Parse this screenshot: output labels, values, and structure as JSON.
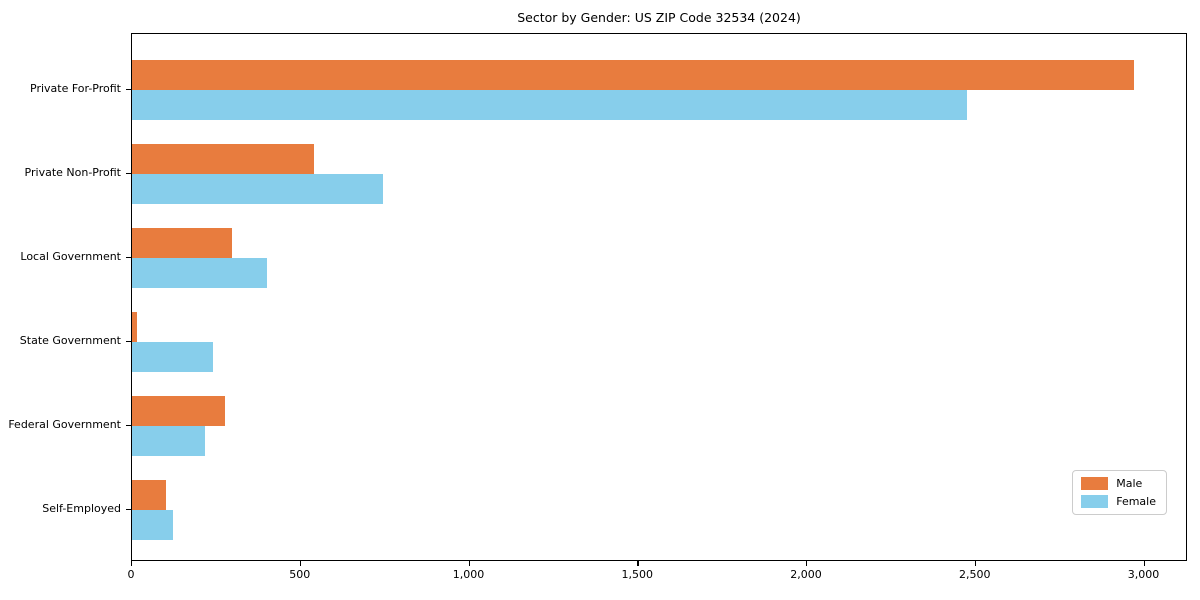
{
  "chart_data": {
    "type": "bar",
    "orientation": "horizontal",
    "title": "Sector by Gender: US ZIP Code 32534 (2024)",
    "categories": [
      "Private For-Profit",
      "Private Non-Profit",
      "Local Government",
      "State Government",
      "Federal Government",
      "Self-Employed"
    ],
    "series": [
      {
        "name": "Male",
        "color": "#e87c3e",
        "values": [
          2970,
          540,
          295,
          15,
          275,
          100
        ]
      },
      {
        "name": "Female",
        "color": "#87ceeb",
        "values": [
          2475,
          745,
          400,
          240,
          215,
          120
        ]
      }
    ],
    "xlabel": "",
    "ylabel": "",
    "xlim": [
      0,
      3120
    ],
    "x_ticks": [
      0,
      500,
      1000,
      1500,
      2000,
      2500,
      3000
    ],
    "x_tick_labels": [
      "0",
      "500",
      "1,000",
      "1,500",
      "2,000",
      "2,500",
      "3,000"
    ],
    "grid": false,
    "legend_position": "lower right",
    "axis_color": "#000000",
    "background_color": "#ffffff"
  }
}
